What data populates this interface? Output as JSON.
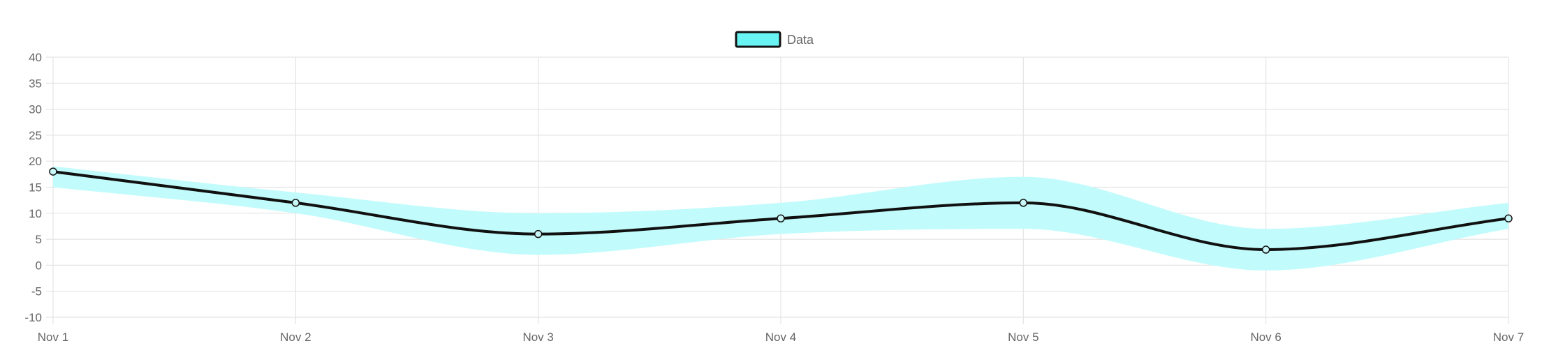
{
  "chart_data": {
    "type": "line",
    "title": "",
    "xlabel": "",
    "ylabel": "",
    "x": [
      "Nov 1",
      "Nov 2",
      "Nov 3",
      "Nov 4",
      "Nov 5",
      "Nov 6",
      "Nov 7"
    ],
    "ylim": [
      -10,
      40
    ],
    "y_ticks": [
      40,
      35,
      30,
      25,
      20,
      15,
      10,
      5,
      0,
      -5,
      -10
    ],
    "grid": true,
    "legend": {
      "position": "top-center",
      "entries": [
        "Data"
      ]
    },
    "series": [
      {
        "name": "Data",
        "values": [
          18,
          12,
          6,
          9,
          12,
          3,
          9
        ],
        "band_upper": [
          19,
          14,
          10,
          12,
          17,
          7,
          12
        ],
        "band_lower": [
          15,
          10,
          2,
          6,
          7,
          -1,
          7
        ]
      }
    ],
    "colors": {
      "line": "#111111",
      "band_fill": "#c2fbfb",
      "legend_fill": "#6af3f3",
      "point_fill": "#c9f6f6",
      "grid": "#e4e4e4",
      "text": "#666666"
    }
  }
}
